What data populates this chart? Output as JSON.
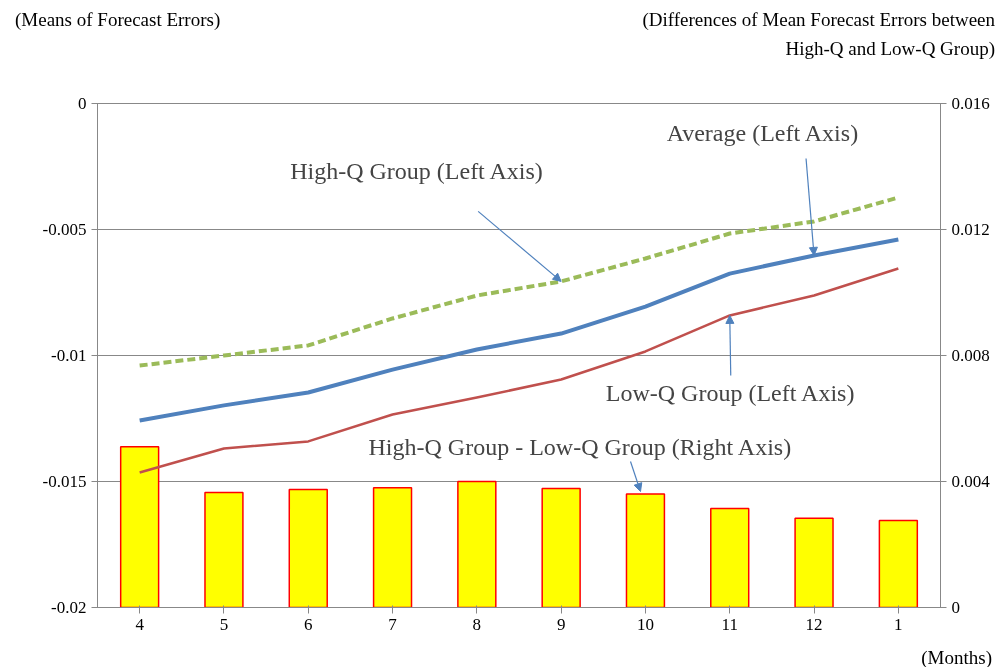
{
  "chart_data": {
    "type": "line",
    "xlabel": "(Months)",
    "ylabel": "(Means of Forecast Errors)",
    "y2label": "(Differences of Mean Forecast Errors between\nHigh-Q and Low-Q Group)",
    "categories": [
      "4",
      "5",
      "6",
      "7",
      "8",
      "9",
      "10",
      "11",
      "12",
      "1"
    ],
    "series": [
      {
        "type": "bar",
        "axis": "y2",
        "color": "#ffff00",
        "values": [
          0.0051,
          0.00365,
          0.00375,
          0.0038,
          0.004,
          0.00378,
          0.0036,
          0.00314,
          0.00283,
          0.00276
        ]
      },
      {
        "color": "#9bbb59",
        "line_style": "dashed",
        "values": [
          -0.0104,
          -0.01,
          -0.0096,
          -0.00853,
          -0.00762,
          -0.00706,
          -0.00615,
          -0.00516,
          -0.00468,
          -0.00373
        ]
      },
      {
        "color": "#4f81bd",
        "line_style": "solid",
        "values": [
          -0.01258,
          -0.01198,
          -0.01147,
          -0.01056,
          -0.00976,
          -0.00913,
          -0.00806,
          -0.00675,
          -0.00603,
          -0.0054
        ]
      },
      {
        "color": "#c0504d",
        "line_style": "solid",
        "values": [
          -0.01464,
          -0.01369,
          -0.01341,
          -0.01234,
          -0.01167,
          -0.01095,
          -0.00984,
          -0.00841,
          -0.00762,
          -0.00655
        ]
      }
    ],
    "ylim": [
      -0.02,
      0
    ],
    "yticks": [
      0,
      -0.005,
      -0.01,
      -0.015,
      -0.02
    ],
    "y2lim": [
      0,
      0.016
    ],
    "y2ticks": [
      0,
      0.004,
      0.008,
      0.012,
      0.016
    ],
    "grid": "y",
    "marker": "none",
    "annotations": [
      {
        "text": "High-Q Group (Left Axis)",
        "x": "9",
        "y": -0.00706
      },
      {
        "text": "Average (Left Axis)",
        "x": "12",
        "y": -0.00603
      },
      {
        "text": "Low-Q Group (Left Axis)",
        "x": "11",
        "y": -0.00841
      },
      "High-Q Group - Low-Q Group (Right Axis)"
    ]
  }
}
